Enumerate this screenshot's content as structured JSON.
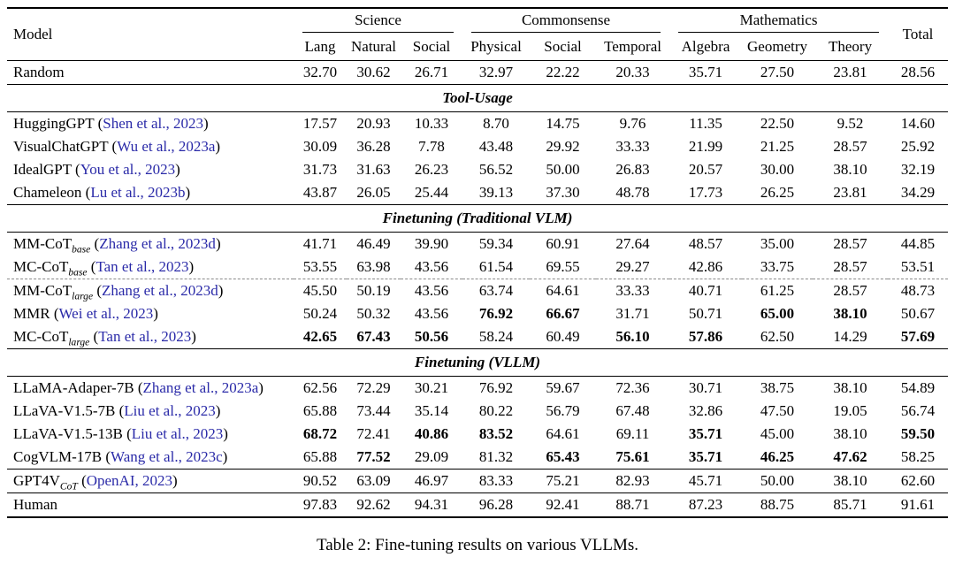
{
  "colors": {
    "citation": "#2a2aa8",
    "text": "#000000",
    "background": "#ffffff",
    "dashed_rule": "#8a8a8a"
  },
  "punctuation": {
    "cite_open": " (",
    "cite_close": ")"
  },
  "caption": "Table 2: Fine-tuning results on various VLLMs.",
  "table": {
    "header": {
      "model": "Model",
      "total": "Total",
      "groups": [
        {
          "label": "Science",
          "cols": [
            "Lang",
            "Natural",
            "Social"
          ]
        },
        {
          "label": "Commonsense",
          "cols": [
            "Physical",
            "Social",
            "Temporal"
          ]
        },
        {
          "label": "Mathematics",
          "cols": [
            "Algebra",
            "Geometry",
            "Theory"
          ]
        }
      ]
    },
    "sections": [
      {
        "header": "",
        "rows": [
          {
            "name": "Random",
            "sub": "",
            "cite": "",
            "values": [
              "32.70",
              "30.62",
              "26.71",
              "32.97",
              "22.22",
              "20.33",
              "35.71",
              "27.50",
              "23.81",
              "28.56"
            ],
            "bold": []
          }
        ]
      },
      {
        "header": "Tool-Usage",
        "rows": [
          {
            "name": "HuggingGPT",
            "sub": "",
            "cite": "Shen et al., 2023",
            "values": [
              "17.57",
              "20.93",
              "10.33",
              "8.70",
              "14.75",
              "9.76",
              "11.35",
              "22.50",
              "9.52",
              "14.60"
            ],
            "bold": []
          },
          {
            "name": "VisualChatGPT",
            "sub": "",
            "cite": "Wu et al., 2023a",
            "values": [
              "30.09",
              "36.28",
              "7.78",
              "43.48",
              "29.92",
              "33.33",
              "21.99",
              "21.25",
              "28.57",
              "25.92"
            ],
            "bold": []
          },
          {
            "name": "IdealGPT",
            "sub": "",
            "cite": "You et al., 2023",
            "values": [
              "31.73",
              "31.63",
              "26.23",
              "56.52",
              "50.00",
              "26.83",
              "20.57",
              "30.00",
              "38.10",
              "32.19"
            ],
            "bold": []
          },
          {
            "name": "Chameleon",
            "sub": "",
            "cite": "Lu et al., 2023b",
            "values": [
              "43.87",
              "26.05",
              "25.44",
              "39.13",
              "37.30",
              "48.78",
              "17.73",
              "26.25",
              "23.81",
              "34.29"
            ],
            "bold": []
          }
        ]
      },
      {
        "header": "Finetuning (Traditional VLM)",
        "rows": [
          {
            "name": "MM-CoT",
            "sub": "base",
            "cite": "Zhang et al., 2023d",
            "values": [
              "41.71",
              "46.49",
              "39.90",
              "59.34",
              "60.91",
              "27.64",
              "48.57",
              "35.00",
              "28.57",
              "44.85"
            ],
            "bold": []
          },
          {
            "name": "MC-CoT",
            "sub": "base",
            "cite": "Tan et al., 2023",
            "values": [
              "53.55",
              "63.98",
              "43.56",
              "61.54",
              "69.55",
              "29.27",
              "42.86",
              "33.75",
              "28.57",
              "53.51"
            ],
            "bold": []
          },
          {
            "name": "MM-CoT",
            "sub": "large",
            "cite": "Zhang et al., 2023d",
            "values": [
              "45.50",
              "50.19",
              "43.56",
              "63.74",
              "64.61",
              "33.33",
              "40.71",
              "61.25",
              "28.57",
              "48.73"
            ],
            "bold": [],
            "dashed_top": true
          },
          {
            "name": "MMR",
            "sub": "",
            "cite": "Wei et al., 2023",
            "values": [
              "50.24",
              "50.32",
              "43.56",
              "76.92",
              "66.67",
              "31.71",
              "50.71",
              "65.00",
              "38.10",
              "50.67"
            ],
            "bold": [
              3,
              4,
              7,
              8
            ]
          },
          {
            "name": "MC-CoT",
            "sub": "large",
            "cite": "Tan et al., 2023",
            "values": [
              "42.65",
              "67.43",
              "50.56",
              "58.24",
              "60.49",
              "56.10",
              "57.86",
              "62.50",
              "14.29",
              "57.69"
            ],
            "bold": [
              0,
              1,
              2,
              5,
              6,
              9
            ]
          }
        ]
      },
      {
        "header": "Finetuning (VLLM)",
        "rows": [
          {
            "name": "LLaMA-Adaper-7B",
            "sub": "",
            "cite": "Zhang et al., 2023a",
            "values": [
              "62.56",
              "72.29",
              "30.21",
              "76.92",
              "59.67",
              "72.36",
              "30.71",
              "38.75",
              "38.10",
              "54.89"
            ],
            "bold": []
          },
          {
            "name": "LLaVA-V1.5-7B",
            "sub": "",
            "cite": "Liu et al., 2023",
            "values": [
              "65.88",
              "73.44",
              "35.14",
              "80.22",
              "56.79",
              "67.48",
              "32.86",
              "47.50",
              "19.05",
              "56.74"
            ],
            "bold": []
          },
          {
            "name": "LLaVA-V1.5-13B",
            "sub": "",
            "cite": "Liu et al., 2023",
            "values": [
              "68.72",
              "72.41",
              "40.86",
              "83.52",
              "64.61",
              "69.11",
              "35.71",
              "45.00",
              "38.10",
              "59.50"
            ],
            "bold": [
              0,
              2,
              3,
              6,
              9
            ]
          },
          {
            "name": "CogVLM-17B",
            "sub": "",
            "cite": "Wang et al., 2023c",
            "values": [
              "65.88",
              "77.52",
              "29.09",
              "81.32",
              "65.43",
              "75.61",
              "35.71",
              "46.25",
              "47.62",
              "58.25"
            ],
            "bold": [
              1,
              4,
              5,
              6,
              7,
              8
            ]
          }
        ]
      },
      {
        "header": "",
        "rule_top": true,
        "rows": [
          {
            "name": "GPT4V",
            "sub": "CoT",
            "cite": "OpenAI, 2023",
            "values": [
              "90.52",
              "63.09",
              "46.97",
              "83.33",
              "75.21",
              "82.93",
              "45.71",
              "50.00",
              "38.10",
              "62.60"
            ],
            "bold": []
          }
        ]
      },
      {
        "header": "",
        "rule_top": true,
        "rows": [
          {
            "name": "Human",
            "sub": "",
            "cite": "",
            "values": [
              "97.83",
              "92.62",
              "94.31",
              "96.28",
              "92.41",
              "88.71",
              "87.23",
              "88.75",
              "85.71",
              "91.61"
            ],
            "bold": []
          }
        ]
      }
    ]
  }
}
